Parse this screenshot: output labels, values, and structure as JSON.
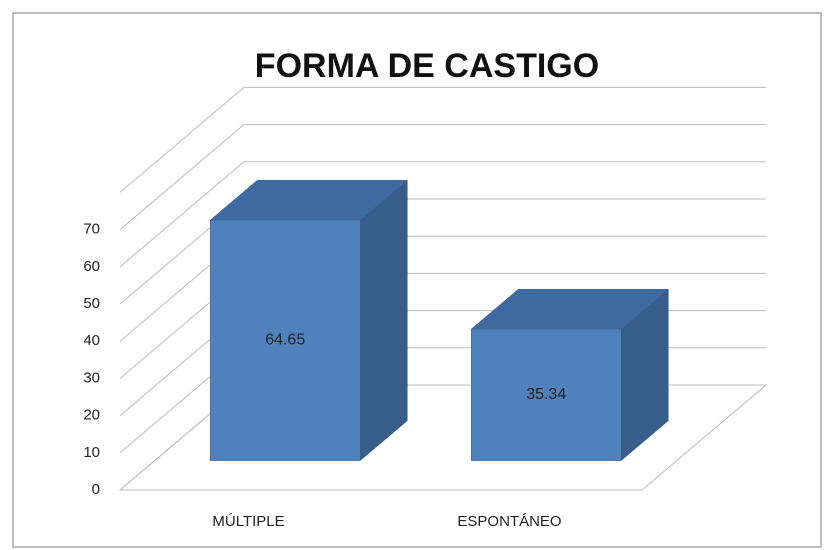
{
  "chart_data": {
    "type": "bar3d",
    "title": "FORMA DE CASTIGO",
    "categories": [
      "MÚLTIPLE",
      "ESPONTÁNEO"
    ],
    "values": [
      64.65,
      35.34
    ],
    "color": "#4f81bd",
    "ylim": [
      0,
      80
    ],
    "yticks": [
      0,
      10,
      20,
      30,
      40,
      50,
      60,
      70
    ],
    "grid": true
  }
}
